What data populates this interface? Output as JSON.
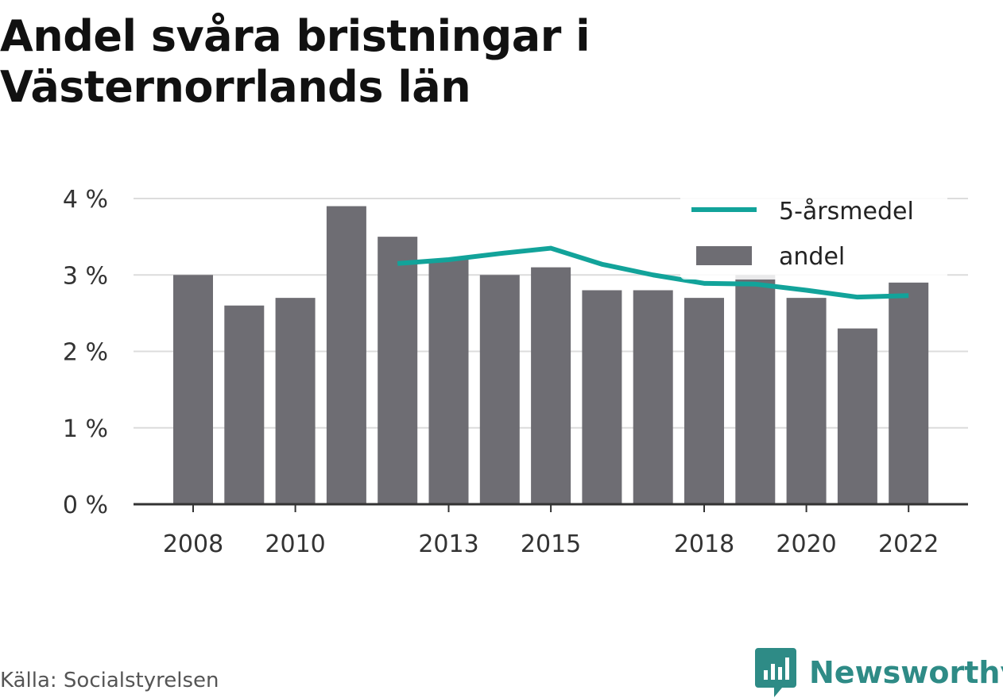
{
  "title": "Andel svåra bristningar i Västernorrlands län",
  "source": "Källa: Socialstyrelsen",
  "brand": {
    "name": "Newsworthy",
    "icon": "newsworthy-logo-icon"
  },
  "colors": {
    "bar": "#6e6d73",
    "line": "#12a39a",
    "grid": "#dcdcdc",
    "axis": "#333333",
    "brand": "#2e8b86"
  },
  "chart_data": {
    "type": "bar",
    "categories": [
      "2008",
      "2009",
      "2010",
      "2011",
      "2012",
      "2013",
      "2014",
      "2015",
      "2016",
      "2017",
      "2018",
      "2019",
      "2020",
      "2021",
      "2022"
    ],
    "x_tick_labels": [
      "2008",
      "2010",
      "2013",
      "2015",
      "2018",
      "2020",
      "2022"
    ],
    "series": [
      {
        "name": "andel",
        "type": "bar",
        "values": [
          3.0,
          2.6,
          2.7,
          3.9,
          3.5,
          3.2,
          3.0,
          3.1,
          2.8,
          2.8,
          2.7,
          3.0,
          2.7,
          2.3,
          2.9
        ]
      },
      {
        "name": "5-årsmedel",
        "type": "line",
        "values": [
          null,
          null,
          null,
          null,
          3.15,
          3.2,
          3.28,
          3.35,
          3.14,
          3.0,
          2.89,
          2.88,
          2.8,
          2.71,
          2.73
        ]
      }
    ],
    "y_ticks": [
      0,
      1,
      2,
      3,
      4
    ],
    "y_tick_labels": [
      "0 %",
      "1 %",
      "2 %",
      "3 %",
      "4 %"
    ],
    "ylim": [
      0,
      4
    ],
    "grid": true,
    "legend": {
      "position": "top-right",
      "entries": [
        "5-årsmedel",
        "andel"
      ]
    }
  }
}
